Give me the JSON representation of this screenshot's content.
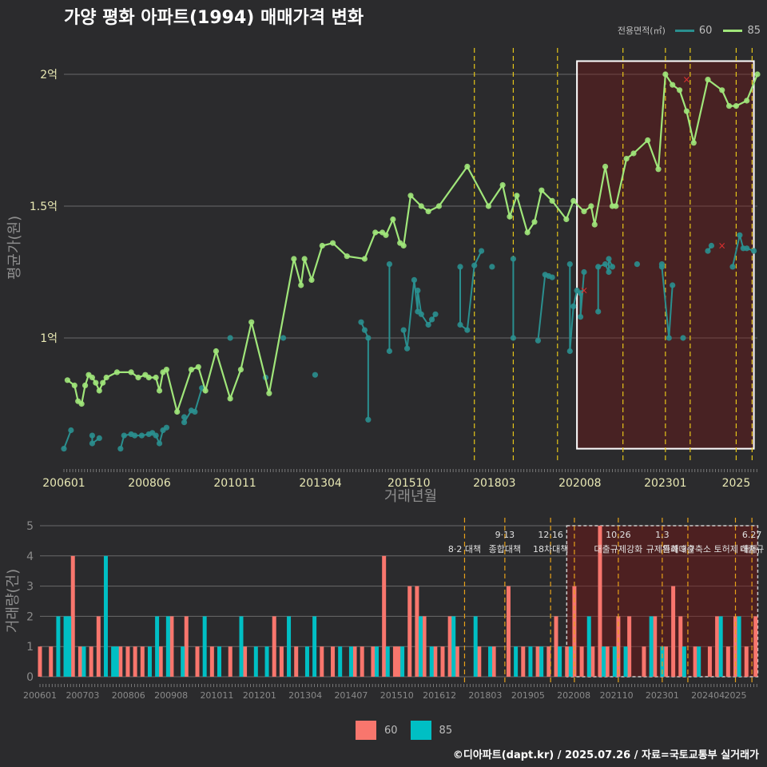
{
  "title": "가양 평화 아파트(1994) 매매가격 변화",
  "legend": {
    "title": "전용면적(㎡)",
    "items": [
      {
        "label": "60",
        "color": "#2a8f8f"
      },
      {
        "label": "85",
        "color": "#a0e67a"
      }
    ]
  },
  "bar_legend": [
    {
      "label": "60",
      "color": "#f8766d"
    },
    {
      "label": "85",
      "color": "#00bfc4"
    }
  ],
  "footer": "©디아파트(dapt.kr) / 2025.07.26 / 자료=국토교통부 실거래가",
  "chart_data": [
    {
      "type": "line",
      "xlabel": "거래년월",
      "ylabel": "평균가(원)",
      "x_ticks": [
        "200601",
        "200806",
        "201011",
        "201304",
        "201510",
        "201803",
        "202008",
        "202301",
        "2025"
      ],
      "y_ticks": [
        {
          "label": "1억",
          "value": 100000000
        },
        {
          "label": "1.5억",
          "value": 150000000
        },
        {
          "label": "2억",
          "value": 200000000
        }
      ],
      "ylim": [
        55000000,
        205000000
      ],
      "xlim": [
        2006.0,
        2025.6
      ],
      "grid": true,
      "policy_lines": [
        2017.6,
        2018.7,
        2019.95,
        2021.8,
        2023.0,
        2023.7,
        2025.0,
        2025.45
      ],
      "highlight": {
        "x_start": 2020.5,
        "x_end": 2025.5,
        "y_start": 58000000,
        "y_end": 205000000
      },
      "series": [
        {
          "name": "60",
          "x": [
            2006.0,
            2006.2,
            2006.8,
            2006.8,
            2007.0,
            2007.6,
            2007.7,
            2007.9,
            2008.0,
            2008.2,
            2008.4,
            2008.5,
            2008.6,
            2008.7,
            2008.8,
            2008.9,
            2009.4,
            2009.4,
            2009.6,
            2009.7,
            2009.9,
            2010.7,
            2011.7,
            2012.2,
            2013.1,
            2014.4,
            2014.5,
            2014.6,
            2014.6,
            2015.2,
            2015.2,
            2015.6,
            2015.7,
            2015.9,
            2016.0,
            2016.0,
            2016.1,
            2016.3,
            2016.4,
            2016.5,
            2017.2,
            2017.2,
            2017.4,
            2017.6,
            2017.8,
            2018.1,
            2018.7,
            2018.7,
            2019.4,
            2019.6,
            2019.7,
            2019.8,
            2020.3,
            2020.3,
            2020.4,
            2020.5,
            2020.6,
            2020.6,
            2020.7,
            2021.1,
            2021.1,
            2021.3,
            2021.4,
            2021.4,
            2021.5,
            2022.2,
            2022.9,
            2022.9,
            2023.1,
            2023.2,
            2023.5,
            2024.2,
            2024.3,
            2024.9,
            2025.1,
            2025.2,
            2025.3,
            2025.5
          ],
          "y": [
            58000000,
            65000000,
            63000000,
            60000000,
            62000000,
            58000000,
            63000000,
            63500000,
            63000000,
            63000000,
            63500000,
            64000000,
            63000000,
            60000000,
            65000000,
            66000000,
            70000000,
            68000000,
            72500000,
            72000000,
            81000000,
            100000000,
            85000000,
            100000000,
            86000000,
            106000000,
            103000000,
            100000000,
            69000000,
            128000000,
            95000000,
            103000000,
            96000000,
            122000000,
            110000000,
            118000000,
            109000000,
            105000000,
            107000000,
            109000000,
            127000000,
            105000000,
            103000000,
            127500000,
            133000000,
            127000000,
            130000000,
            100000000,
            99000000,
            124000000,
            123500000,
            123000000,
            128000000,
            95000000,
            112000000,
            118000000,
            117000000,
            108000000,
            125000000,
            110000000,
            127000000,
            128000000,
            125000000,
            130000000,
            127000000,
            128000000,
            128000000,
            127000000,
            100000000,
            120000000,
            100000000,
            133000000,
            135000000,
            127000000,
            139000000,
            134000000,
            134000000,
            133000000
          ]
        },
        {
          "name": "85",
          "x": [
            2006.1,
            2006.3,
            2006.4,
            2006.5,
            2006.6,
            2006.7,
            2006.8,
            2006.9,
            2007.0,
            2007.1,
            2007.2,
            2007.5,
            2007.9,
            2008.1,
            2008.3,
            2008.4,
            2008.6,
            2008.7,
            2008.8,
            2008.9,
            2009.2,
            2009.6,
            2009.8,
            2010.0,
            2010.3,
            2010.7,
            2011.0,
            2011.3,
            2011.8,
            2012.5,
            2012.7,
            2012.8,
            2013.0,
            2013.3,
            2013.6,
            2014.0,
            2014.5,
            2014.8,
            2015.0,
            2015.1,
            2015.3,
            2015.5,
            2015.6,
            2015.8,
            2016.1,
            2016.3,
            2016.6,
            2017.4,
            2018.0,
            2018.4,
            2018.6,
            2018.8,
            2019.1,
            2019.3,
            2019.5,
            2019.8,
            2020.2,
            2020.4,
            2020.7,
            2020.9,
            2021.0,
            2021.3,
            2021.5,
            2021.6,
            2021.9,
            2022.1,
            2022.5,
            2022.8,
            2023.0,
            2023.2,
            2023.4,
            2023.6,
            2023.8,
            2024.2,
            2024.6,
            2024.8,
            2025.0,
            2025.3,
            2025.6
          ],
          "y": [
            84000000,
            82000000,
            76000000,
            75000000,
            82000000,
            86000000,
            85000000,
            83000000,
            80000000,
            83000000,
            85000000,
            87000000,
            87000000,
            85000000,
            86000000,
            85000000,
            85000000,
            80000000,
            87000000,
            88000000,
            72000000,
            88000000,
            89000000,
            80000000,
            95000000,
            77000000,
            88000000,
            106000000,
            79000000,
            130000000,
            120000000,
            130000000,
            122000000,
            135000000,
            136000000,
            131000000,
            130000000,
            140000000,
            140000000,
            139000000,
            145000000,
            136000000,
            135000000,
            154000000,
            150000000,
            148000000,
            150000000,
            165000000,
            150000000,
            158000000,
            146000000,
            154000000,
            140000000,
            144000000,
            156000000,
            152000000,
            145000000,
            152000000,
            148000000,
            150000000,
            143000000,
            165000000,
            150000000,
            150000000,
            168000000,
            170000000,
            175000000,
            164000000,
            200000000,
            196000000,
            194000000,
            186000000,
            174000000,
            198000000,
            194000000,
            188000000,
            188000000,
            190000000,
            200000000
          ]
        }
      ],
      "markers": [
        {
          "x": 2020.7,
          "y": 118000000
        },
        {
          "x": 2023.6,
          "y": 198000000
        },
        {
          "x": 2024.6,
          "y": 135000000
        }
      ]
    },
    {
      "type": "bar",
      "ylabel": "거래량(건)",
      "x_ticks": [
        "200601",
        "200703",
        "200806",
        "200908",
        "201011",
        "201201",
        "201304",
        "201407",
        "201510",
        "201612",
        "201803",
        "201905",
        "202008",
        "202110",
        "202301",
        "202404",
        "2025"
      ],
      "y_ticks": [
        0,
        1,
        2,
        3,
        4,
        5
      ],
      "ylim": [
        0,
        5
      ],
      "grid": true,
      "policy_lines": [
        2017.6,
        2018.7,
        2019.95,
        2020.6,
        2021.8,
        2023.0,
        2023.7,
        2025.0,
        2025.45
      ],
      "highlight": {
        "x_start": 2020.5,
        "x_end": 2025.5
      },
      "events": [
        {
          "x": 2017.6,
          "line1": "",
          "line2": "8·2 대책"
        },
        {
          "x": 2018.7,
          "line1": "9·13",
          "line2": "종합대책"
        },
        {
          "x": 2019.95,
          "line1": "12·16",
          "line2": "18차대책"
        },
        {
          "x": 2021.8,
          "line1": "10.26",
          "line2": "대출규제강화"
        },
        {
          "x": 2023.0,
          "line1": "1.3",
          "line2": "규제완화"
        },
        {
          "x": 2023.7,
          "line1": "",
          "line2": "9·7"
        },
        {
          "x": 2024.3,
          "line1": "",
          "line2": "특례대출축소 토허제 해제"
        },
        {
          "x": 2025.45,
          "line1": "6.27",
          "line2": "대출규"
        }
      ],
      "series": [
        {
          "name": "60",
          "x": [
            2006.0,
            2006.3,
            2006.7,
            2006.9,
            2007.1,
            2007.4,
            2007.6,
            2008.2,
            2008.4,
            2008.6,
            2008.8,
            2009.3,
            2009.6,
            2010.0,
            2010.3,
            2010.7,
            2011.2,
            2011.6,
            2012.4,
            2012.6,
            2013.0,
            2013.7,
            2014.0,
            2014.6,
            2014.8,
            2015.1,
            2015.4,
            2015.7,
            2015.8,
            2016.1,
            2016.3,
            2016.5,
            2016.8,
            2017.0,
            2017.2,
            2017.4,
            2018.0,
            2018.4,
            2018.8,
            2019.2,
            2019.6,
            2019.9,
            2020.1,
            2020.4,
            2020.6,
            2020.8,
            2021.1,
            2021.3,
            2021.5,
            2021.8,
            2022.1,
            2022.5,
            2022.8,
            2023.1,
            2023.3,
            2023.5,
            2023.9,
            2024.3,
            2024.5,
            2024.8,
            2025.0,
            2025.3,
            2025.55
          ],
          "y": [
            1,
            1,
            1,
            4,
            1,
            1,
            2,
            1,
            1,
            1,
            1,
            1,
            2,
            2,
            1,
            1,
            1,
            1,
            2,
            1,
            1,
            1,
            1,
            1,
            1,
            1,
            4,
            1,
            1,
            3,
            3,
            2,
            1,
            1,
            2,
            1,
            1,
            1,
            3,
            1,
            1,
            1,
            2,
            1,
            3,
            1,
            1,
            5,
            1,
            2,
            2,
            1,
            2,
            1,
            3,
            2,
            1,
            1,
            2,
            1,
            2,
            1,
            2
          ]
        },
        {
          "name": "85",
          "x": [
            2006.5,
            2006.7,
            2006.8,
            2007.2,
            2007.8,
            2008.0,
            2008.1,
            2009.0,
            2009.2,
            2009.5,
            2009.9,
            2010.5,
            2010.9,
            2011.5,
            2011.9,
            2012.2,
            2012.8,
            2013.3,
            2013.5,
            2014.2,
            2014.5,
            2015.2,
            2015.5,
            2015.9,
            2016.4,
            2016.7,
            2017.3,
            2017.9,
            2018.3,
            2019.0,
            2019.4,
            2019.7,
            2020.2,
            2020.5,
            2021.0,
            2021.4,
            2021.7,
            2022.0,
            2022.7,
            2023.0,
            2023.6,
            2024.0,
            2024.6,
            2025.1
          ],
          "y": [
            2,
            2,
            2,
            1,
            4,
            1,
            1,
            1,
            2,
            2,
            1,
            2,
            1,
            2,
            1,
            1,
            2,
            1,
            2,
            1,
            1,
            1,
            1,
            1,
            2,
            1,
            2,
            2,
            1,
            1,
            1,
            1,
            1,
            1,
            2,
            1,
            1,
            1,
            2,
            1,
            1,
            1,
            2,
            2
          ]
        }
      ]
    }
  ]
}
